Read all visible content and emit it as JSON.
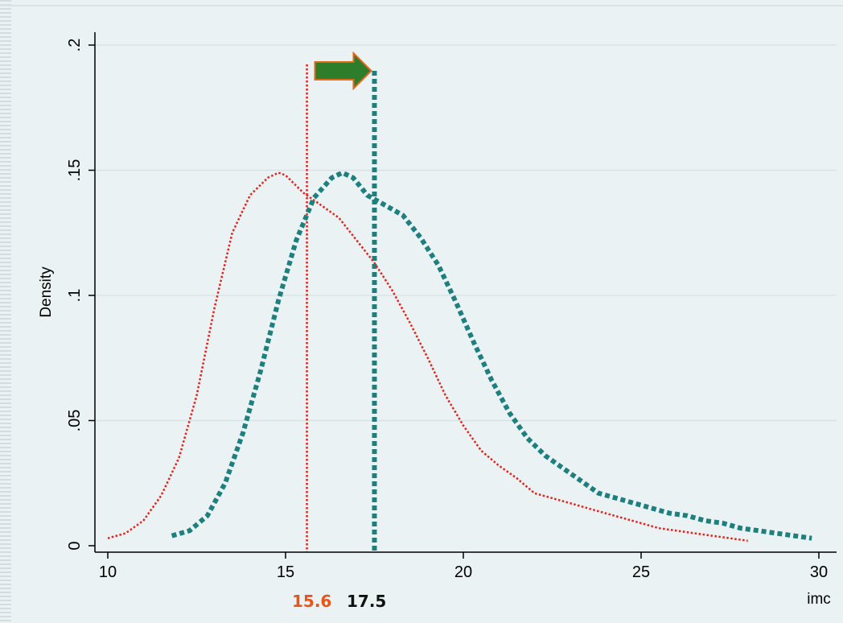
{
  "chart_data": {
    "type": "line",
    "xlabel": "imc",
    "ylabel": "Density",
    "xlim": [
      10,
      30
    ],
    "ylim": [
      0,
      0.2
    ],
    "x_ticks": [
      {
        "value": 10,
        "label": "10"
      },
      {
        "value": 15,
        "label": "15"
      },
      {
        "value": 20,
        "label": "20"
      },
      {
        "value": 25,
        "label": "25"
      },
      {
        "value": 30,
        "label": "30"
      }
    ],
    "y_ticks": [
      {
        "value": 0,
        "label": "0"
      },
      {
        "value": 0.05,
        "label": ".05"
      },
      {
        "value": 0.1,
        "label": ".1"
      },
      {
        "value": 0.15,
        "label": ".15"
      },
      {
        "value": 0.2,
        "label": ".2"
      }
    ],
    "grid": "horizontal",
    "series": [
      {
        "color": "#e8201a",
        "style": "dotted-thin",
        "x": [
          10.0,
          10.5,
          11.0,
          11.5,
          12.0,
          12.5,
          13.0,
          13.5,
          14.0,
          14.5,
          14.8,
          15.0,
          15.5,
          16.0,
          16.5,
          17.0,
          17.5,
          18.0,
          18.5,
          19.0,
          19.5,
          20.0,
          20.5,
          21.0,
          21.5,
          22.0,
          22.5,
          23.0,
          23.5,
          24.0,
          24.5,
          25.0,
          25.5,
          26.0,
          26.5,
          27.0,
          27.5,
          28.0
        ],
        "y": [
          0.003,
          0.005,
          0.01,
          0.02,
          0.035,
          0.06,
          0.095,
          0.125,
          0.14,
          0.147,
          0.149,
          0.148,
          0.141,
          0.136,
          0.131,
          0.122,
          0.113,
          0.102,
          0.089,
          0.075,
          0.06,
          0.048,
          0.038,
          0.032,
          0.027,
          0.021,
          0.019,
          0.017,
          0.015,
          0.013,
          0.011,
          0.009,
          0.007,
          0.006,
          0.005,
          0.004,
          0.003,
          0.002
        ]
      },
      {
        "color": "#1e7f7f",
        "style": "dotted-thick",
        "x": [
          11.8,
          12.3,
          12.8,
          13.3,
          13.8,
          14.3,
          14.8,
          15.3,
          15.8,
          16.3,
          16.6,
          16.9,
          17.3,
          17.8,
          18.3,
          18.8,
          19.3,
          19.8,
          20.3,
          20.8,
          21.3,
          21.8,
          22.3,
          22.8,
          23.3,
          23.8,
          24.3,
          24.8,
          25.3,
          25.8,
          26.3,
          26.8,
          27.3,
          27.8,
          28.3,
          28.8,
          29.3,
          29.8
        ],
        "y": [
          0.004,
          0.006,
          0.012,
          0.025,
          0.045,
          0.07,
          0.098,
          0.122,
          0.139,
          0.147,
          0.149,
          0.147,
          0.14,
          0.136,
          0.132,
          0.123,
          0.112,
          0.097,
          0.081,
          0.066,
          0.053,
          0.043,
          0.036,
          0.031,
          0.026,
          0.021,
          0.019,
          0.017,
          0.015,
          0.013,
          0.012,
          0.01,
          0.009,
          0.007,
          0.006,
          0.005,
          0.004,
          0.003
        ]
      }
    ],
    "reference_lines": [
      {
        "x": 15.6,
        "label": "15.6",
        "color": "#e8201a"
      },
      {
        "x": 17.5,
        "label": "17.5",
        "color": "#1e7f7f"
      }
    ],
    "annotation_arrow": {
      "from_x": 15.6,
      "to_x": 17.5,
      "color": "#2e7d2a",
      "outline": "#e36a1c"
    }
  }
}
